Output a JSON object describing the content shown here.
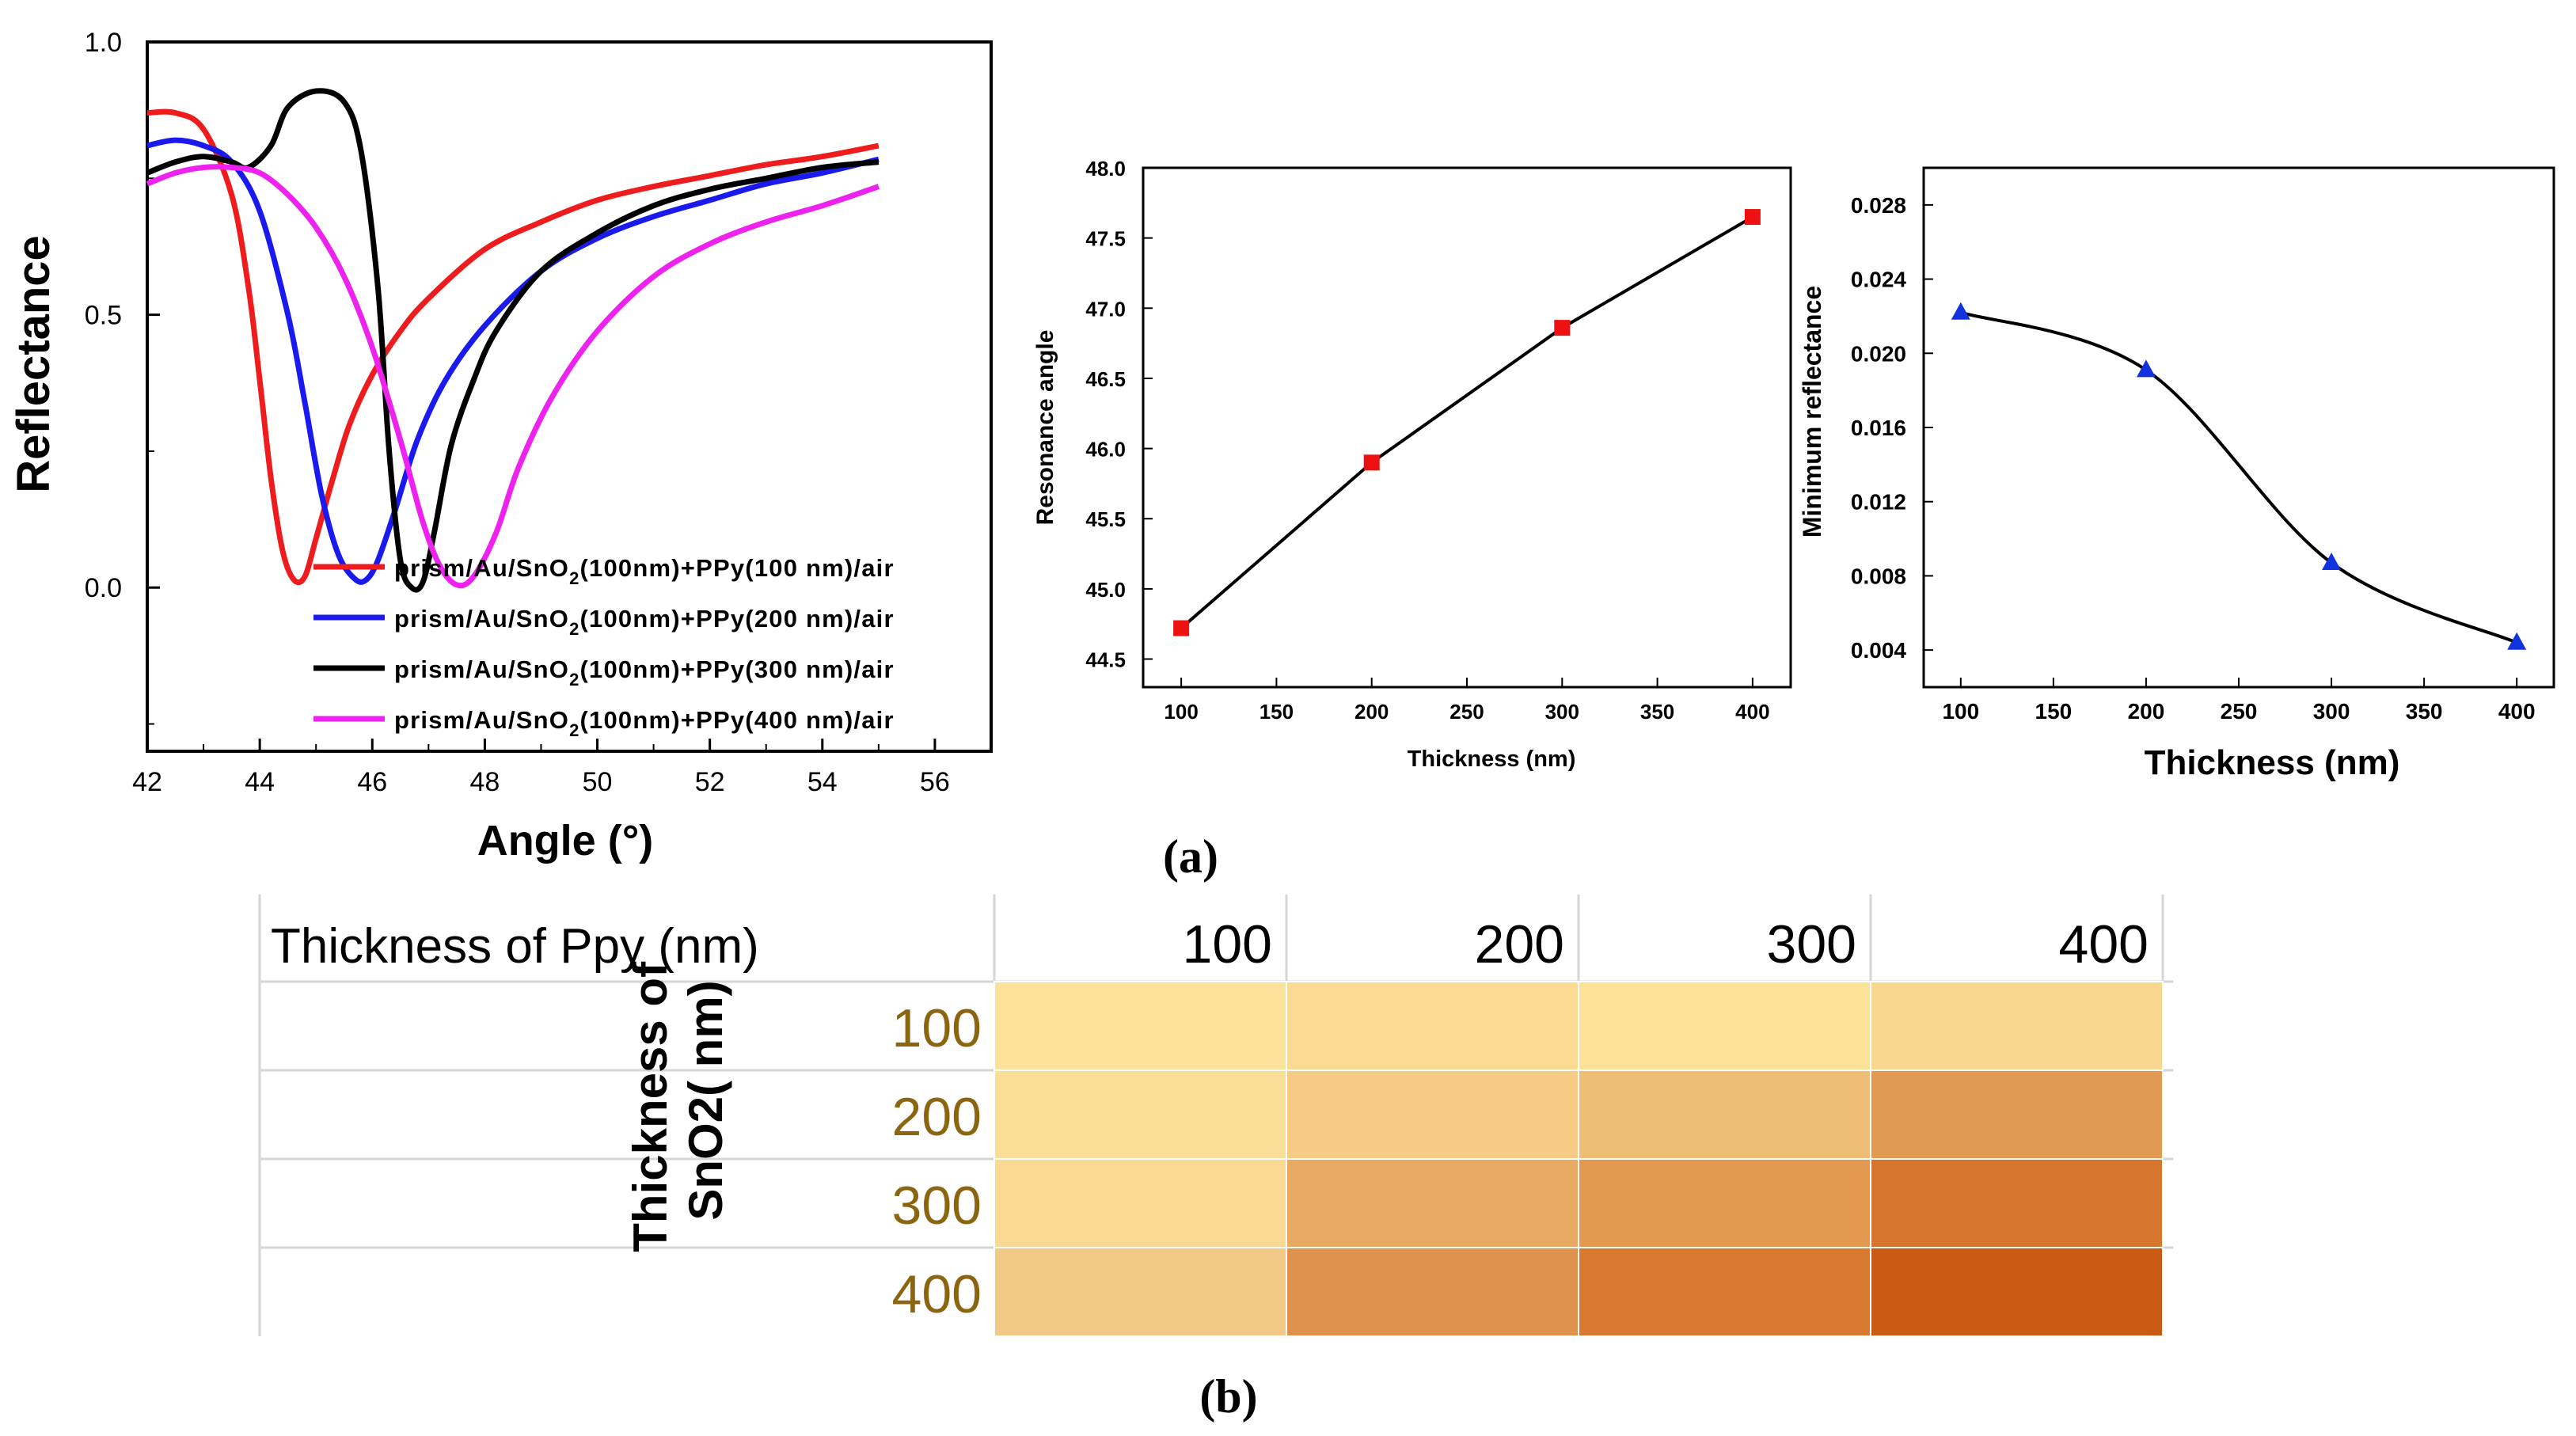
{
  "figure": {
    "panel_a_label": "(a)",
    "panel_b_label": "(b)"
  },
  "colors": {
    "red": "#ee1c1c",
    "blue": "#1a1aee",
    "black": "#000000",
    "magenta": "#ee22ee",
    "marker_red": "#ee1111",
    "marker_blue": "#1133dd"
  },
  "chart_data": [
    {
      "type": "line",
      "xlabel": "Angle (°)",
      "ylabel": "Reflectance",
      "xlim": [
        42,
        57
      ],
      "ylim": [
        -0.3,
        1.0
      ],
      "xticks": [
        "42",
        "44",
        "46",
        "48",
        "50",
        "52",
        "54",
        "56"
      ],
      "yticks": [
        "0.0",
        "0.5",
        "1.0"
      ],
      "legend_position": "bottom-center",
      "series": [
        {
          "name": "prism/Au/SnO2(100nm)+PPy(100 nm)/air",
          "color": "#ee1c1c",
          "x": [
            42.0,
            42.5,
            43.0,
            43.5,
            43.8,
            44.0,
            44.2,
            44.4,
            44.6,
            44.8,
            45.0,
            45.3,
            45.6,
            46.0,
            46.5,
            47.0,
            48.0,
            49.0,
            50.0,
            51.0,
            52.0,
            53.0,
            54.0,
            55.0
          ],
          "y": [
            0.87,
            0.87,
            0.84,
            0.72,
            0.55,
            0.38,
            0.2,
            0.07,
            0.015,
            0.02,
            0.09,
            0.2,
            0.3,
            0.39,
            0.47,
            0.53,
            0.62,
            0.67,
            0.71,
            0.735,
            0.755,
            0.775,
            0.79,
            0.81
          ]
        },
        {
          "name": "prism/Au/SnO2(100nm)+PPy(200 nm)/air",
          "color": "#1a1aee",
          "x": [
            42.0,
            42.5,
            43.0,
            43.5,
            44.0,
            44.5,
            44.8,
            45.1,
            45.4,
            45.7,
            45.9,
            46.1,
            46.4,
            46.8,
            47.3,
            48.0,
            49.0,
            50.0,
            51.0,
            52.0,
            53.0,
            54.0,
            55.0
          ],
          "y": [
            0.81,
            0.82,
            0.81,
            0.78,
            0.69,
            0.5,
            0.34,
            0.17,
            0.06,
            0.015,
            0.015,
            0.05,
            0.14,
            0.27,
            0.38,
            0.48,
            0.58,
            0.64,
            0.68,
            0.71,
            0.74,
            0.76,
            0.785
          ]
        },
        {
          "name": "prism/Au/SnO2(100nm)+PPy(300 nm)/air",
          "color": "#000000",
          "x": [
            42.0,
            42.5,
            43.0,
            43.5,
            43.8,
            44.2,
            44.5,
            45.0,
            45.5,
            45.8,
            46.1,
            46.3,
            46.5,
            46.7,
            46.9,
            47.1,
            47.4,
            47.8,
            48.2,
            49.0,
            50.0,
            51.0,
            52.0,
            53.0,
            54.0,
            55.0
          ],
          "y": [
            0.76,
            0.78,
            0.79,
            0.78,
            0.77,
            0.81,
            0.88,
            0.91,
            0.89,
            0.8,
            0.55,
            0.25,
            0.05,
            0.0,
            0.01,
            0.1,
            0.26,
            0.38,
            0.47,
            0.58,
            0.65,
            0.7,
            0.73,
            0.75,
            0.77,
            0.78
          ]
        },
        {
          "name": "prism/Au/SnO2(100nm)+PPy(400 nm)/air",
          "color": "#ee22ee",
          "x": [
            42.0,
            42.5,
            43.0,
            43.5,
            44.0,
            44.5,
            45.0,
            45.5,
            46.0,
            46.5,
            46.9,
            47.2,
            47.5,
            47.8,
            48.2,
            48.6,
            49.2,
            50.0,
            51.0,
            52.0,
            53.0,
            54.0,
            55.0
          ],
          "y": [
            0.74,
            0.76,
            0.77,
            0.77,
            0.76,
            0.72,
            0.66,
            0.57,
            0.44,
            0.27,
            0.12,
            0.04,
            0.005,
            0.02,
            0.1,
            0.22,
            0.35,
            0.47,
            0.57,
            0.63,
            0.67,
            0.7,
            0.735
          ]
        }
      ]
    },
    {
      "type": "line",
      "xlabel": "Thickness (nm)",
      "ylabel": "Resonance angle",
      "xlim": [
        80,
        420
      ],
      "ylim": [
        44.3,
        48.0
      ],
      "xticks": [
        "100",
        "150",
        "200",
        "250",
        "300",
        "350",
        "400"
      ],
      "yticks": [
        "44.5",
        "45.0",
        "45.5",
        "46.0",
        "46.5",
        "47.0",
        "47.5",
        "48.0"
      ],
      "x": [
        100,
        200,
        300,
        400
      ],
      "y": [
        44.72,
        45.9,
        46.86,
        47.65
      ],
      "marker": "square"
    },
    {
      "type": "line",
      "xlabel": "Thickness (nm)",
      "ylabel": "Minimum reflectance",
      "xlim": [
        80,
        420
      ],
      "ylim": [
        0.002,
        0.03
      ],
      "xticks": [
        "100",
        "150",
        "200",
        "250",
        "300",
        "350",
        "400"
      ],
      "yticks": [
        "0.004",
        "0.008",
        "0.012",
        "0.016",
        "0.020",
        "0.024",
        "0.028"
      ],
      "x": [
        100,
        200,
        300,
        400
      ],
      "y": [
        0.0222,
        0.0191,
        0.0087,
        0.0044
      ],
      "marker": "triangle"
    },
    {
      "type": "heatmap",
      "title": "Thickness of Ppy (nm)",
      "ylabel": "Thickness of SnO2( nm)",
      "columns": [
        "100",
        "200",
        "300",
        "400"
      ],
      "rows": [
        "100",
        "200",
        "300",
        "400"
      ],
      "cell_colors": [
        [
          "#fce19b",
          "#fbda94",
          "#fce296",
          "#f9d78f"
        ],
        [
          "#fbdf99",
          "#f5cb85",
          "#eebe76",
          "#e19a52"
        ],
        [
          "#fad993",
          "#e8aa62",
          "#e3994f",
          "#d6762d"
        ],
        [
          "#f2c987",
          "#df924b",
          "#d8792f",
          "#c85a13"
        ]
      ]
    }
  ]
}
